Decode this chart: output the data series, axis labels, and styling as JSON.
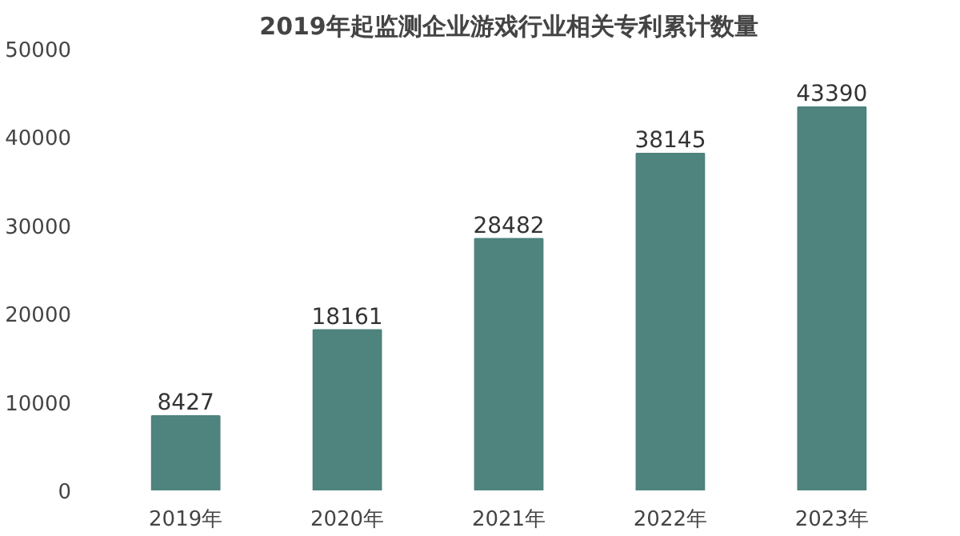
{
  "chart_data": {
    "type": "bar",
    "title": "2019年起监测企业游戏行业相关专利累计数量",
    "categories": [
      "2019年",
      "2020年",
      "2021年",
      "2022年",
      "2023年"
    ],
    "values": [
      8427,
      18161,
      28482,
      38145,
      43390
    ],
    "color": "#4e837e",
    "data_labels": true,
    "grid": false,
    "ylim": [
      0,
      50000
    ],
    "yticks": [
      0,
      10000,
      20000,
      30000,
      40000,
      50000
    ]
  }
}
